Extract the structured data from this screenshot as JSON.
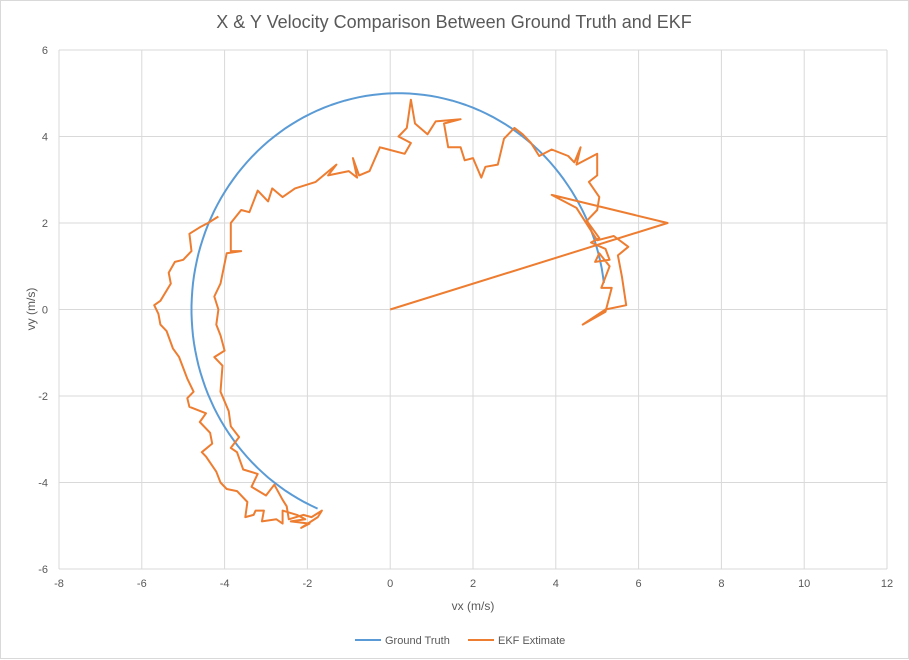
{
  "chart_data": {
    "type": "scatter",
    "title": "X & Y Velocity Comparison Between Ground Truth and EKF",
    "xlabel": "vx (m/s)",
    "ylabel": "vy (m/s)",
    "xlim": [
      -8,
      12
    ],
    "ylim": [
      -6,
      6
    ],
    "x_ticks": [
      -8,
      -6,
      -4,
      -2,
      0,
      2,
      4,
      6,
      8,
      10,
      12
    ],
    "y_ticks": [
      -6,
      -4,
      -2,
      0,
      2,
      4,
      6
    ],
    "x_tick_labels": [
      "-8",
      "-6",
      "-4",
      "-2",
      "0",
      "2",
      "4",
      "6",
      "8",
      "10",
      "12"
    ],
    "y_tick_labels": [
      "-6",
      "-4",
      "-2",
      "0",
      "2",
      "4",
      "6"
    ],
    "grid": true,
    "legend_position": "bottom",
    "series": [
      {
        "name": "Ground Truth",
        "color": "#5b9bd5",
        "shape": "arc",
        "center": [
          0.2,
          0.0
        ],
        "radius": 5.0,
        "start_deg": 7,
        "end_deg": 247,
        "samples": 120
      },
      {
        "name": "EKF Extimate",
        "color": "#ed7d31",
        "points": [
          [
            0,
            0
          ],
          [
            6.7,
            2.0
          ],
          [
            3.9,
            2.65
          ],
          [
            4.5,
            2.35
          ],
          [
            5.0,
            1.6
          ],
          [
            5.4,
            1.7
          ],
          [
            5.75,
            1.45
          ],
          [
            5.5,
            1.25
          ],
          [
            5.6,
            0.75
          ],
          [
            5.7,
            0.1
          ],
          [
            5.2,
            0.0
          ],
          [
            4.65,
            -0.35
          ],
          [
            5.2,
            -0.05
          ],
          [
            5.35,
            0.5
          ],
          [
            5.1,
            0.5
          ],
          [
            5.3,
            1.0
          ],
          [
            5.05,
            1.3
          ],
          [
            4.95,
            1.1
          ],
          [
            5.3,
            1.15
          ],
          [
            5.2,
            1.4
          ],
          [
            4.85,
            1.55
          ],
          [
            5.05,
            1.65
          ],
          [
            4.75,
            2.05
          ],
          [
            5.0,
            2.3
          ],
          [
            5.05,
            2.6
          ],
          [
            4.8,
            2.95
          ],
          [
            5.0,
            3.1
          ],
          [
            5.0,
            3.6
          ],
          [
            4.5,
            3.35
          ],
          [
            4.6,
            3.75
          ],
          [
            4.45,
            3.4
          ],
          [
            4.3,
            3.55
          ],
          [
            3.9,
            3.7
          ],
          [
            3.6,
            3.55
          ],
          [
            3.4,
            3.85
          ],
          [
            3.2,
            4.05
          ],
          [
            3.0,
            4.2
          ],
          [
            2.75,
            3.95
          ],
          [
            2.6,
            3.35
          ],
          [
            2.3,
            3.3
          ],
          [
            2.2,
            3.05
          ],
          [
            2.0,
            3.5
          ],
          [
            1.8,
            3.45
          ],
          [
            1.7,
            3.75
          ],
          [
            1.4,
            3.75
          ],
          [
            1.3,
            4.3
          ],
          [
            1.7,
            4.4
          ],
          [
            1.1,
            4.35
          ],
          [
            0.9,
            4.05
          ],
          [
            0.6,
            4.3
          ],
          [
            0.5,
            4.85
          ],
          [
            0.4,
            4.2
          ],
          [
            0.2,
            4.0
          ],
          [
            0.5,
            3.85
          ],
          [
            0.35,
            3.6
          ],
          [
            -0.25,
            3.75
          ],
          [
            -0.5,
            3.2
          ],
          [
            -0.75,
            3.1
          ],
          [
            -0.9,
            3.5
          ],
          [
            -0.8,
            3.05
          ],
          [
            -1.0,
            3.2
          ],
          [
            -1.5,
            3.1
          ],
          [
            -1.3,
            3.35
          ],
          [
            -1.8,
            2.95
          ],
          [
            -2.3,
            2.8
          ],
          [
            -2.6,
            2.6
          ],
          [
            -2.85,
            2.8
          ],
          [
            -2.95,
            2.5
          ],
          [
            -3.2,
            2.75
          ],
          [
            -3.4,
            2.25
          ],
          [
            -3.6,
            2.3
          ],
          [
            -3.85,
            2.0
          ],
          [
            -3.85,
            1.35
          ],
          [
            -3.6,
            1.35
          ],
          [
            -3.95,
            1.3
          ],
          [
            -4.1,
            0.6
          ],
          [
            -4.25,
            0.3
          ],
          [
            -4.15,
            0.0
          ],
          [
            -4.2,
            -0.35
          ],
          [
            -4.1,
            -0.6
          ],
          [
            -4.0,
            -0.95
          ],
          [
            -4.25,
            -1.1
          ],
          [
            -4.05,
            -1.3
          ],
          [
            -4.1,
            -1.9
          ],
          [
            -3.9,
            -2.35
          ],
          [
            -3.85,
            -2.7
          ],
          [
            -3.65,
            -2.95
          ],
          [
            -3.85,
            -3.2
          ],
          [
            -3.7,
            -3.3
          ],
          [
            -3.55,
            -3.7
          ],
          [
            -3.2,
            -3.8
          ],
          [
            -3.35,
            -4.1
          ],
          [
            -3.0,
            -4.3
          ],
          [
            -2.8,
            -4.05
          ],
          [
            -2.6,
            -4.4
          ],
          [
            -2.5,
            -4.55
          ],
          [
            -2.45,
            -4.85
          ],
          [
            -2.1,
            -4.75
          ],
          [
            -1.9,
            -4.8
          ],
          [
            -1.65,
            -4.65
          ],
          [
            -1.75,
            -4.8
          ],
          [
            -2.15,
            -5.05
          ],
          [
            -1.95,
            -4.95
          ],
          [
            -2.4,
            -4.9
          ],
          [
            -2.05,
            -4.85
          ],
          [
            -2.25,
            -4.75
          ],
          [
            -2.6,
            -4.65
          ],
          [
            -2.6,
            -4.95
          ],
          [
            -2.75,
            -4.85
          ],
          [
            -3.1,
            -4.9
          ],
          [
            -3.05,
            -4.65
          ],
          [
            -3.25,
            -4.65
          ],
          [
            -3.3,
            -4.75
          ],
          [
            -3.5,
            -4.8
          ],
          [
            -3.45,
            -4.45
          ],
          [
            -3.7,
            -4.2
          ],
          [
            -3.95,
            -4.15
          ],
          [
            -4.1,
            -4.0
          ],
          [
            -4.2,
            -3.75
          ],
          [
            -4.45,
            -3.4
          ],
          [
            -4.55,
            -3.3
          ],
          [
            -4.3,
            -3.1
          ],
          [
            -4.35,
            -2.85
          ],
          [
            -4.6,
            -2.6
          ],
          [
            -4.45,
            -2.4
          ],
          [
            -4.85,
            -2.25
          ],
          [
            -4.9,
            -2.05
          ],
          [
            -4.75,
            -1.9
          ],
          [
            -4.9,
            -1.6
          ],
          [
            -5.0,
            -1.35
          ],
          [
            -5.1,
            -1.1
          ],
          [
            -5.25,
            -0.9
          ],
          [
            -5.4,
            -0.5
          ],
          [
            -5.55,
            -0.35
          ],
          [
            -5.6,
            -0.1
          ],
          [
            -5.7,
            0.1
          ],
          [
            -5.55,
            0.2
          ],
          [
            -5.3,
            0.6
          ],
          [
            -5.35,
            0.85
          ],
          [
            -5.2,
            1.1
          ],
          [
            -5.0,
            1.15
          ],
          [
            -4.8,
            1.35
          ],
          [
            -4.85,
            1.75
          ],
          [
            -4.6,
            1.9
          ],
          [
            -4.4,
            2.0
          ],
          [
            -4.15,
            2.15
          ]
        ]
      }
    ]
  }
}
